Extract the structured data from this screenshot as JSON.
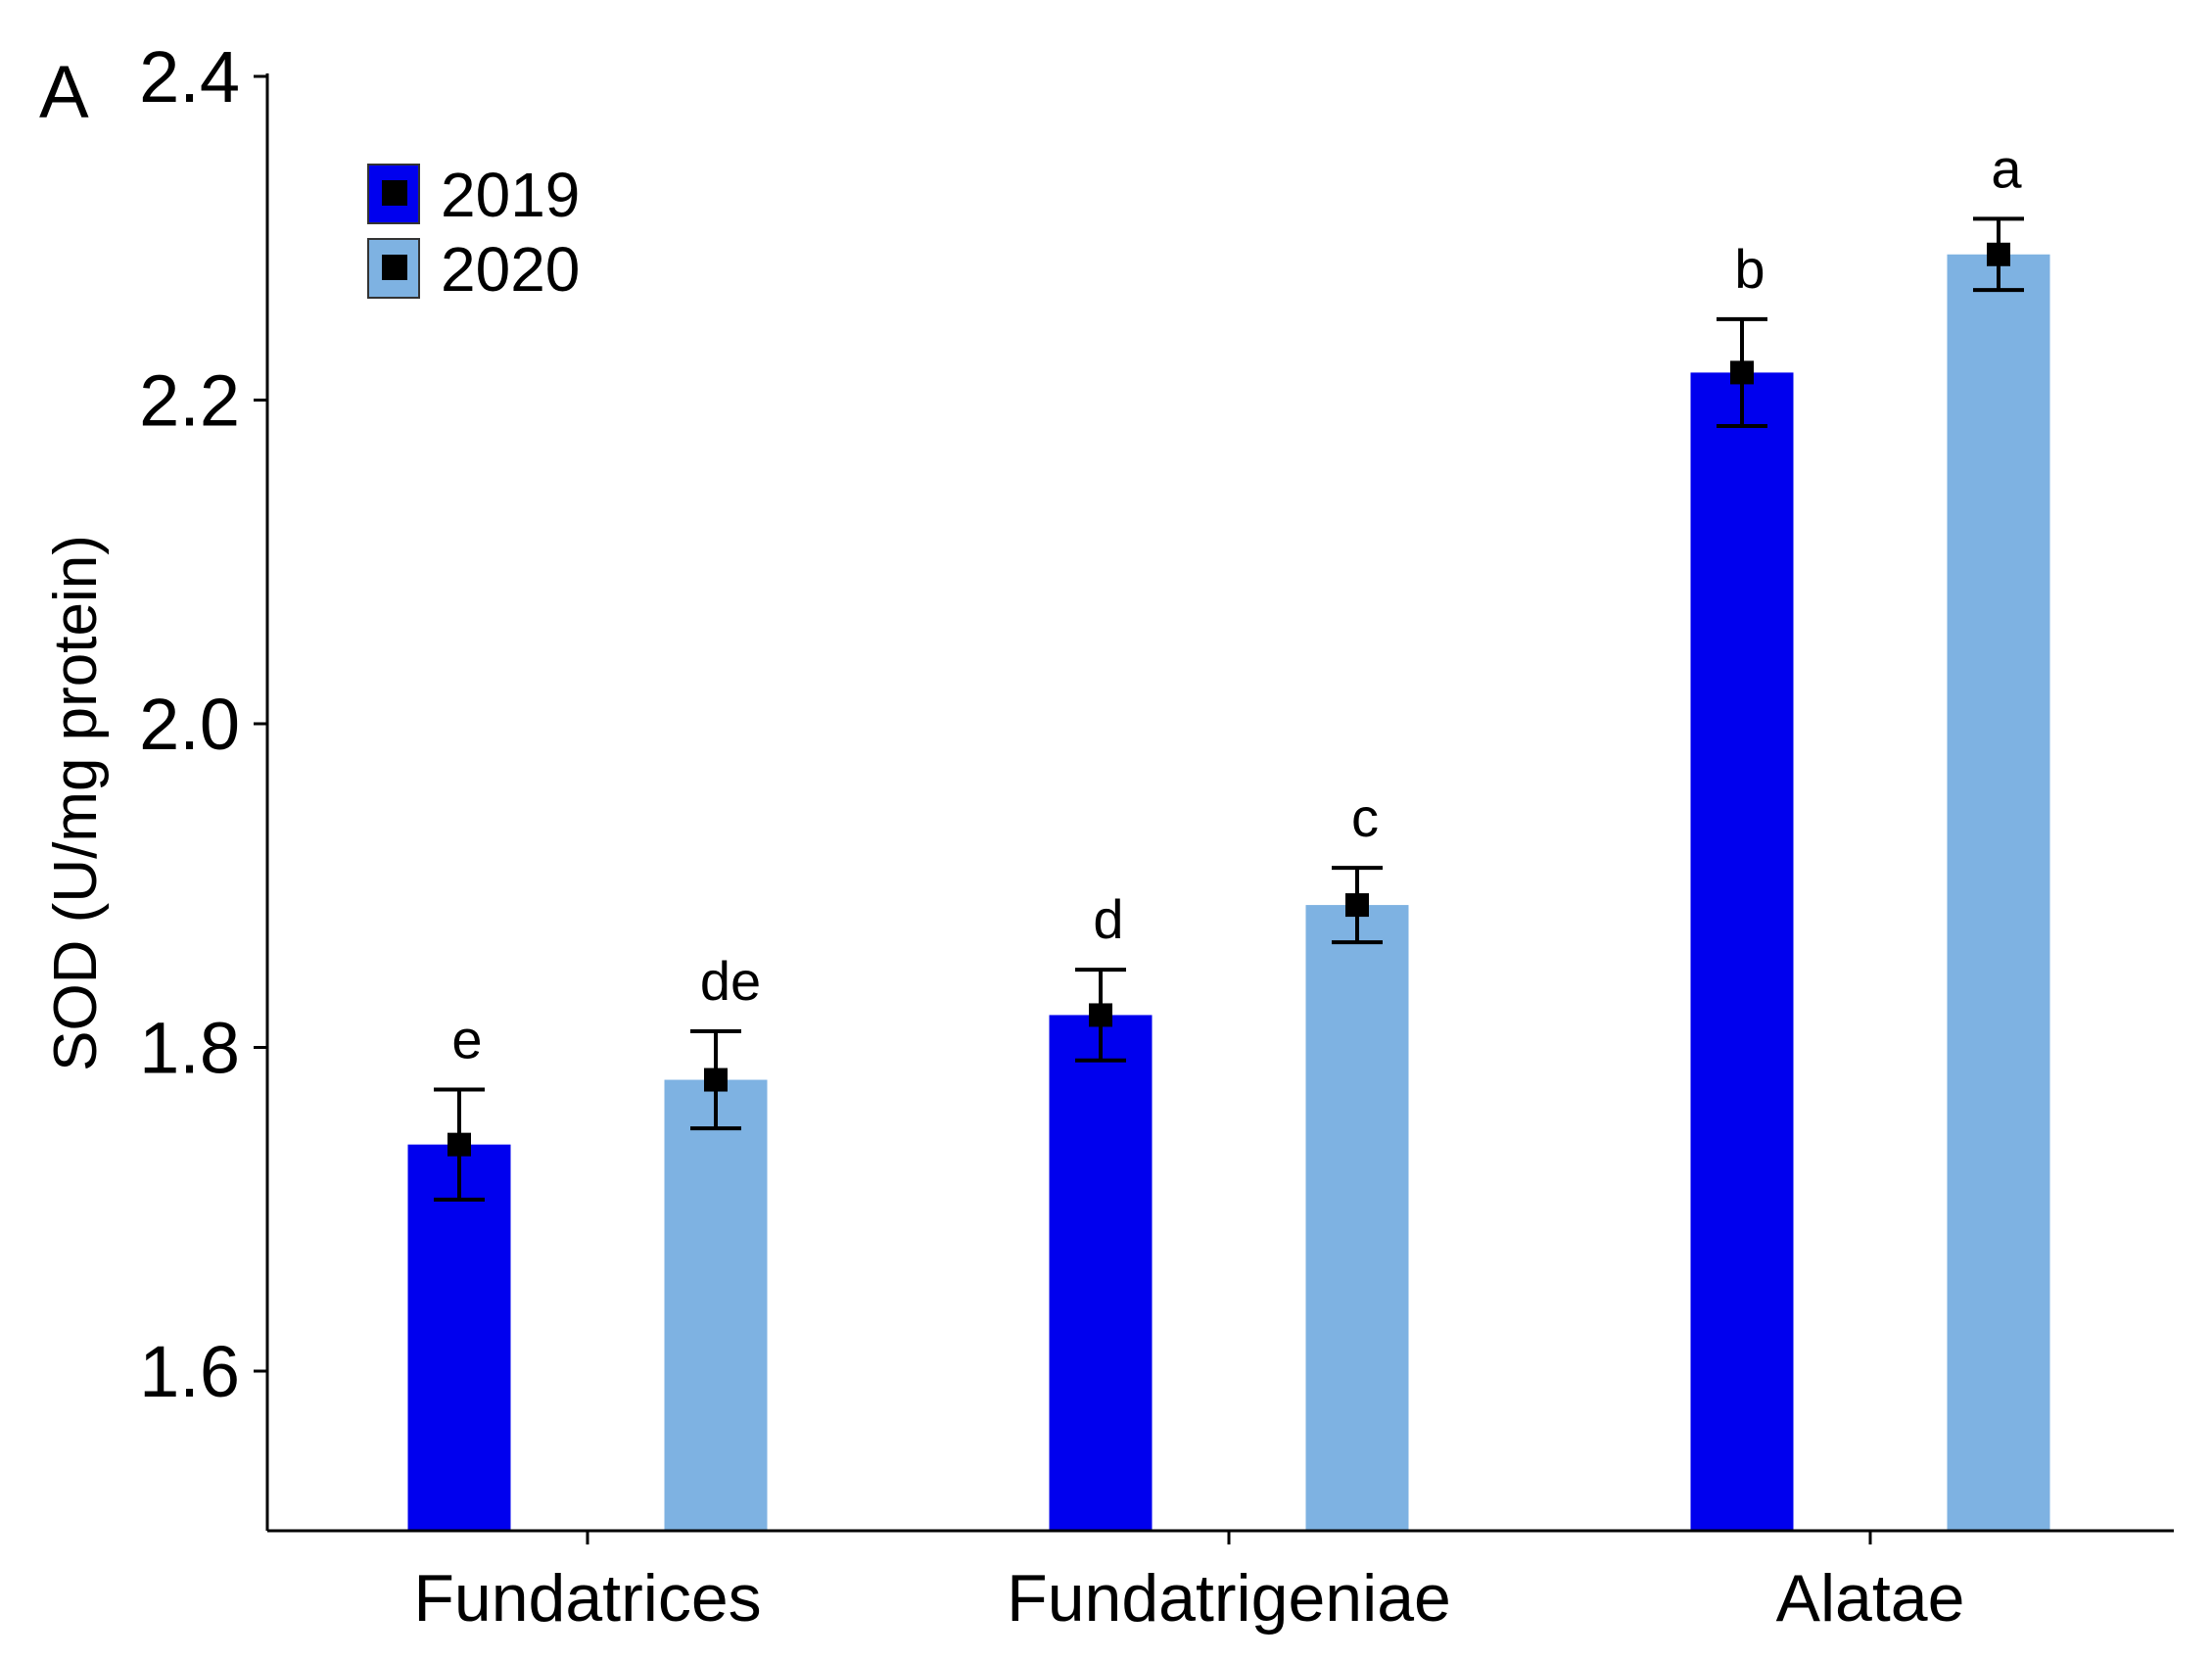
{
  "chart_data": {
    "type": "bar",
    "panel_label": "A",
    "title": "",
    "xlabel": "",
    "ylabel": "SOD (U/mg protein)",
    "ylim": [
      1.5,
      2.4
    ],
    "yticks": [
      1.6,
      1.8,
      2.0,
      2.2,
      2.4
    ],
    "ytick_labels": [
      "1.6",
      "1.8",
      "2.0",
      "2.2",
      "2.4"
    ],
    "grid": false,
    "legend_position": "top-left",
    "categories": [
      "Fundatrices",
      "Fundatrigeniae",
      "Alatae"
    ],
    "series": [
      {
        "name": "2019",
        "color": "#0000EE",
        "values": [
          1.74,
          1.82,
          2.217
        ],
        "errors": [
          0.034,
          0.028,
          0.033
        ],
        "letters": [
          "e",
          "d",
          "b"
        ]
      },
      {
        "name": "2020",
        "color": "#7EB2E2",
        "values": [
          1.78,
          1.888,
          2.29
        ],
        "errors": [
          0.03,
          0.023,
          0.022
        ],
        "letters": [
          "de",
          "c",
          "a"
        ]
      }
    ]
  }
}
